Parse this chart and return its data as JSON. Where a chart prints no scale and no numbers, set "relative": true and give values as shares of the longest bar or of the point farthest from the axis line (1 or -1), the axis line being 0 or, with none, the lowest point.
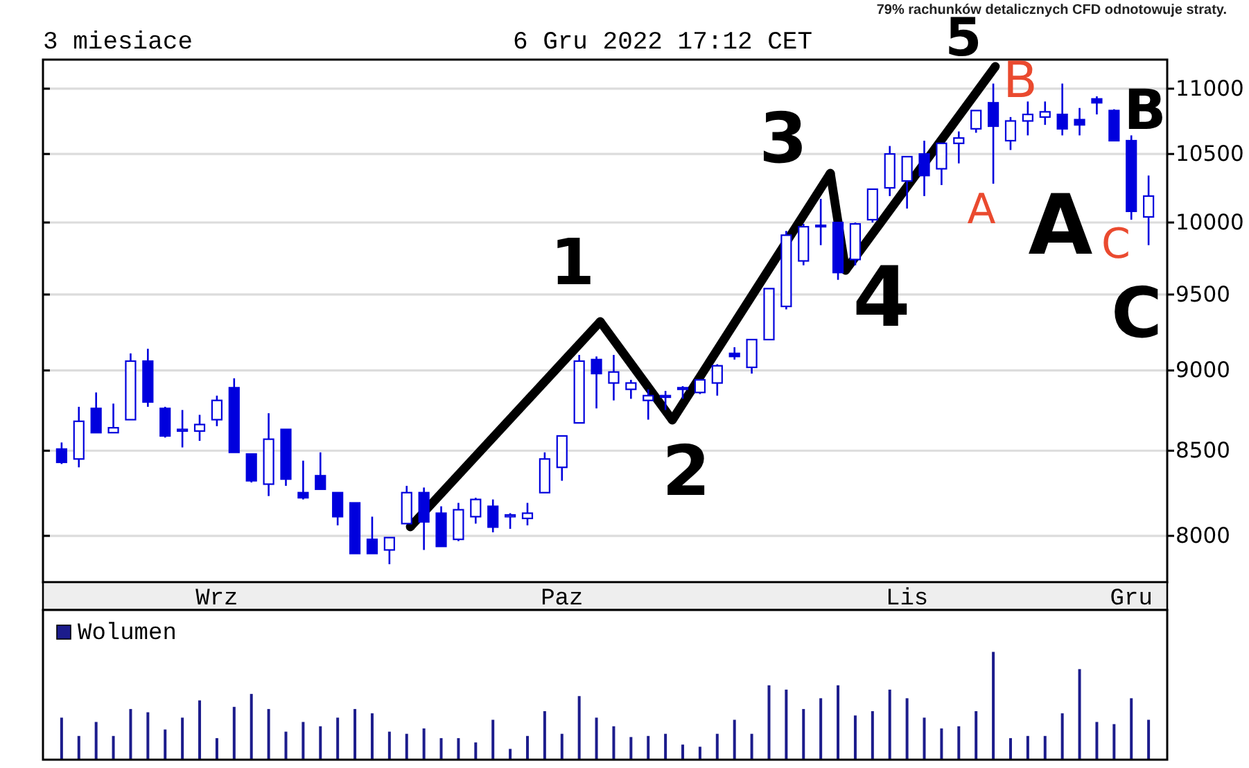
{
  "chart_data": [
    {
      "type": "candlestick",
      "title": "3 miesiace",
      "subtitle": "6 Gru 2022 17:12 CET",
      "categories": [
        null,
        null,
        null,
        null,
        null,
        null,
        null,
        null,
        null,
        "Wrz",
        null,
        null,
        null,
        null,
        null,
        null,
        null,
        null,
        null,
        null,
        null,
        null,
        null,
        null,
        null,
        null,
        null,
        null,
        null,
        "Paz",
        null,
        null,
        null,
        null,
        null,
        null,
        null,
        null,
        null,
        null,
        null,
        null,
        null,
        null,
        null,
        null,
        null,
        null,
        null,
        "Lis",
        null,
        null,
        null,
        null,
        null,
        null,
        null,
        null,
        null,
        null,
        null,
        null,
        "Gru",
        null
      ],
      "ohlc": [
        [
          8510,
          8550,
          8420,
          8430
        ],
        [
          8450,
          8770,
          8400,
          8680
        ],
        [
          8760,
          8860,
          8610,
          8610
        ],
        [
          8610,
          8790,
          8610,
          8640
        ],
        [
          8690,
          9110,
          8690,
          9060
        ],
        [
          9060,
          9140,
          8770,
          8800
        ],
        [
          8760,
          8770,
          8580,
          8590
        ],
        [
          8620,
          8750,
          8520,
          8630
        ],
        [
          8620,
          8720,
          8560,
          8660
        ],
        [
          8690,
          8840,
          8650,
          8810
        ],
        [
          8890,
          8950,
          8490,
          8490
        ],
        [
          8480,
          8480,
          8310,
          8320
        ],
        [
          8300,
          8730,
          8230,
          8570
        ],
        [
          8630,
          8630,
          8290,
          8330
        ],
        [
          8250,
          8440,
          8210,
          8220
        ],
        [
          8350,
          8490,
          8270,
          8270
        ],
        [
          8250,
          8250,
          8060,
          8110
        ],
        [
          8190,
          8190,
          7900,
          7900
        ],
        [
          7980,
          8110,
          7900,
          7900
        ],
        [
          7920,
          7990,
          7840,
          7990
        ],
        [
          8070,
          8290,
          8070,
          8250
        ],
        [
          8250,
          8280,
          7920,
          8080
        ],
        [
          8130,
          8170,
          7940,
          7940
        ],
        [
          7980,
          8190,
          7970,
          8150
        ],
        [
          8110,
          8220,
          8070,
          8210
        ],
        [
          8170,
          8210,
          8020,
          8050
        ],
        [
          8110,
          8130,
          8040,
          8120
        ],
        [
          8100,
          8190,
          8060,
          8130
        ],
        [
          8250,
          8490,
          8250,
          8450
        ],
        [
          8400,
          8590,
          8320,
          8590
        ],
        [
          8670,
          9100,
          8670,
          9060
        ],
        [
          9070,
          9090,
          8760,
          8980
        ],
        [
          8920,
          9100,
          8810,
          8990
        ],
        [
          8880,
          8940,
          8820,
          8920
        ],
        [
          8810,
          8880,
          8690,
          8840
        ],
        [
          8830,
          8870,
          8750,
          8840
        ],
        [
          8880,
          8900,
          8820,
          8890
        ],
        [
          8860,
          8940,
          8850,
          8940
        ],
        [
          8920,
          9040,
          8840,
          9030
        ],
        [
          9110,
          9150,
          9070,
          9090
        ],
        [
          9020,
          9200,
          8980,
          9200
        ],
        [
          9200,
          9540,
          9200,
          9540
        ],
        [
          9420,
          9940,
          9400,
          9910
        ],
        [
          9730,
          9990,
          9700,
          9970
        ],
        [
          9970,
          10170,
          9840,
          9980
        ],
        [
          10000,
          10000,
          9600,
          9650
        ],
        [
          9740,
          10000,
          9700,
          9990
        ],
        [
          10020,
          10240,
          10000,
          10240
        ],
        [
          10250,
          10560,
          10190,
          10500
        ],
        [
          10300,
          10480,
          10100,
          10480
        ],
        [
          10500,
          10600,
          10190,
          10340
        ],
        [
          10390,
          10580,
          10270,
          10580
        ],
        [
          10580,
          10670,
          10430,
          10620
        ],
        [
          10690,
          10830,
          10660,
          10830
        ],
        [
          10890,
          11040,
          10280,
          10710
        ],
        [
          10600,
          10780,
          10530,
          10750
        ],
        [
          10750,
          10900,
          10640,
          10800
        ],
        [
          10780,
          10900,
          10720,
          10820
        ],
        [
          10800,
          11040,
          10640,
          10690
        ],
        [
          10760,
          10850,
          10640,
          10720
        ],
        [
          10920,
          10940,
          10800,
          10890
        ],
        [
          10830,
          10840,
          10600,
          10600
        ],
        [
          10600,
          10640,
          10020,
          10080
        ],
        [
          10040,
          10340,
          9840,
          10190
        ]
      ],
      "color": "#0000dd",
      "ylim": [
        7740,
        11230
      ],
      "yticks": [
        8000,
        8500,
        9000,
        9500,
        10000,
        10500,
        11000
      ],
      "log": true,
      "grid": "y",
      "annotations": [
        "79% rachunków detalicznych CFD odnotowuje straty.",
        "1",
        "2",
        "3",
        "4",
        "5",
        "A",
        "B",
        "A",
        "C",
        "B",
        "C"
      ]
    },
    {
      "type": "bar",
      "categories": [
        null,
        null,
        null,
        null,
        null,
        null,
        null,
        null,
        null,
        null,
        null,
        null,
        null,
        null,
        null,
        null,
        null,
        null,
        null,
        null,
        null,
        null,
        null,
        null,
        null,
        null,
        null,
        null,
        null,
        null,
        null,
        null,
        null,
        null,
        null,
        null,
        null,
        null,
        null,
        null,
        null,
        null,
        null,
        null,
        null,
        null,
        null,
        null,
        null,
        null,
        null,
        null,
        null,
        null,
        null,
        null,
        null,
        null,
        null,
        null,
        null,
        null,
        null,
        null
      ],
      "series": [
        {
          "name": "Wolumen",
          "color": "#1c1c8c",
          "values": [
            0.39,
            0.22,
            0.35,
            0.22,
            0.47,
            0.44,
            0.28,
            0.39,
            0.55,
            0.2,
            0.49,
            0.61,
            0.47,
            0.26,
            0.35,
            0.31,
            0.39,
            0.47,
            0.43,
            0.26,
            0.24,
            0.29,
            0.2,
            0.2,
            0.16,
            0.37,
            0.1,
            0.22,
            0.45,
            0.24,
            0.59,
            0.39,
            0.31,
            0.21,
            0.22,
            0.24,
            0.14,
            0.12,
            0.24,
            0.37,
            0.24,
            0.69,
            0.65,
            0.47,
            0.57,
            0.69,
            0.41,
            0.45,
            0.65,
            0.57,
            0.39,
            0.29,
            0.31,
            0.45,
            1,
            0.2,
            0.22,
            0.22,
            0.43,
            0.84,
            0.35,
            0.33,
            0.57,
            0.37
          ]
        }
      ],
      "relative": true,
      "legend": "top left"
    }
  ]
}
